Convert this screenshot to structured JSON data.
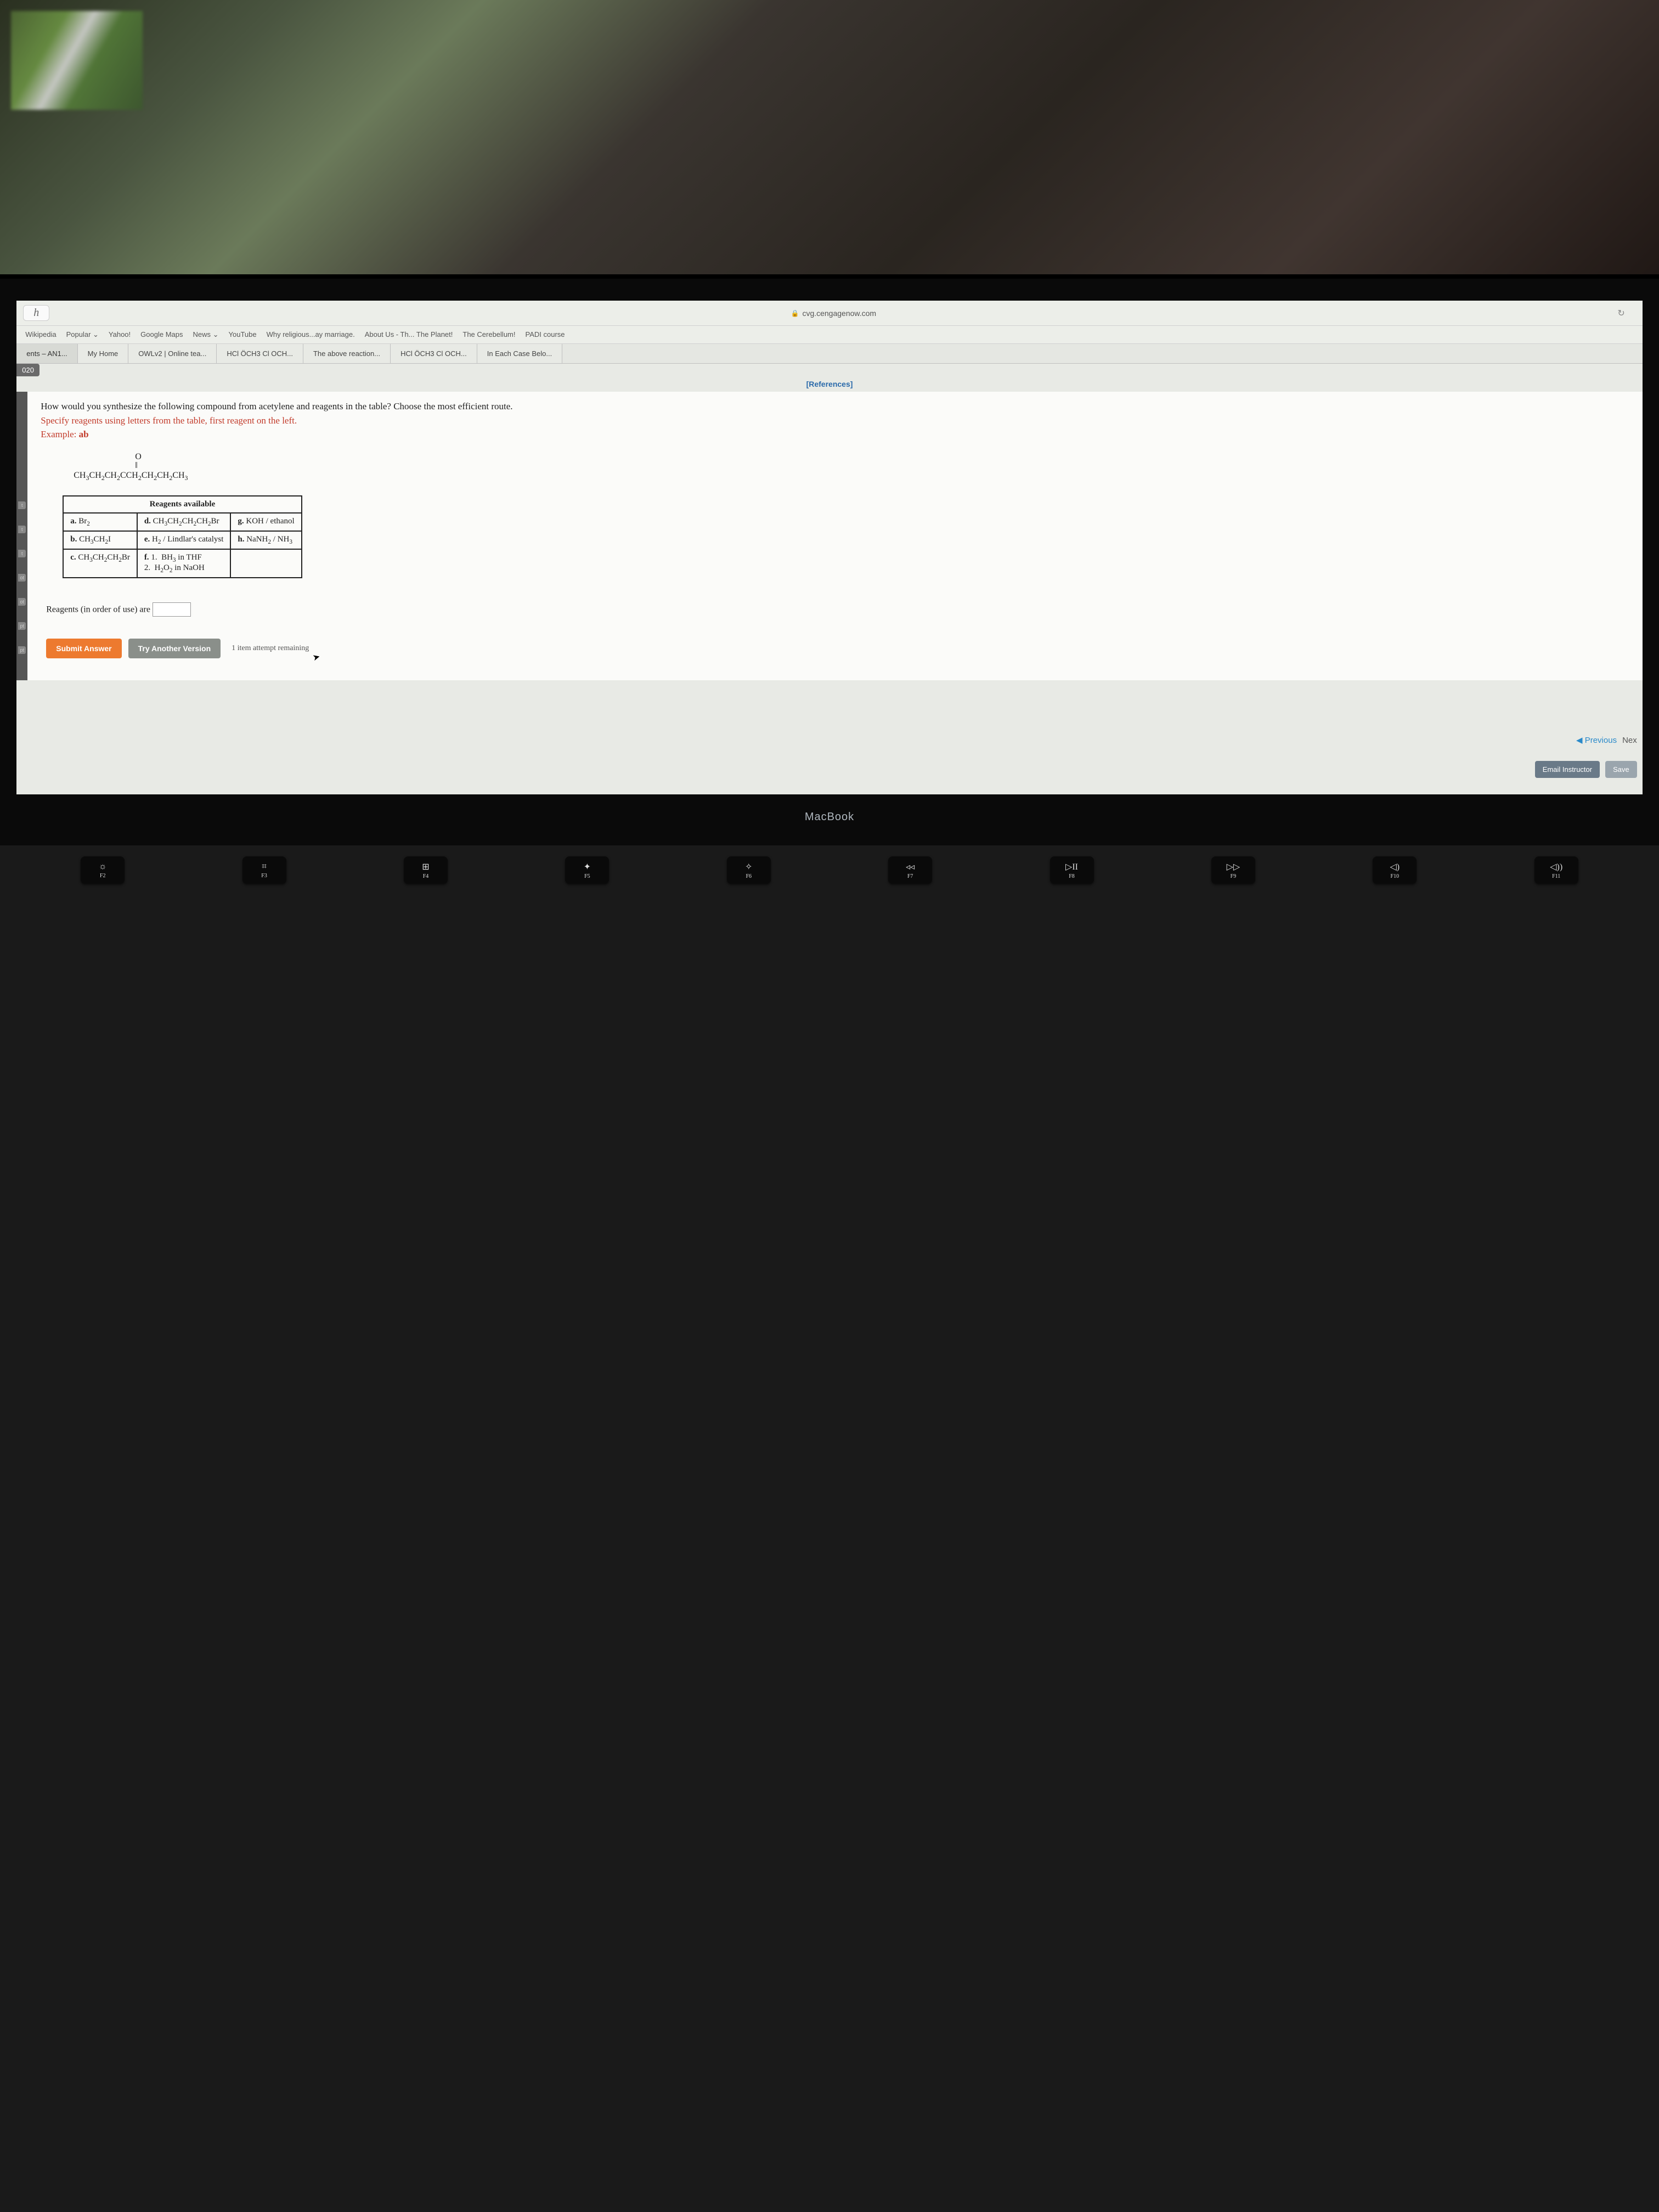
{
  "address_bar": {
    "h": "h",
    "url": "cvg.cengagenow.com",
    "reload": "↻"
  },
  "bookmarks": [
    "Wikipedia",
    "Popular ⌄",
    "Yahoo!",
    "Google Maps",
    "News ⌄",
    "YouTube",
    "Why religious...ay marriage.",
    "About Us - Th... The Planet!",
    "The Cerebellum!",
    "PADI course"
  ],
  "tabs": {
    "left": "ents – AN1...",
    "items": [
      "My Home",
      "OWLv2 | Online tea...",
      "HCl ÖCH3 Cl OCH...",
      "The above reaction...",
      "HCl ÖCH3 Cl OCH...",
      "In Each Case Belo..."
    ]
  },
  "year": "020",
  "references": "[References]",
  "question": {
    "line1": "How would you synthesize the following compound from acetylene and reagents in the table? Choose the most efficient route.",
    "line2": "Specify reagents using letters from the table, first reagent on the left.",
    "example_label": "Example: ",
    "example_val": "ab"
  },
  "molecule": {
    "top": "O",
    "dbl": "‖",
    "formula_html": "CH<sub>3</sub>CH<sub>2</sub>CH<sub>2</sub>CCH<sub>2</sub>CH<sub>2</sub>CH<sub>2</sub>CH<sub>3</sub>"
  },
  "reagents": {
    "header": "Reagents available",
    "a": {
      "l": "a.",
      "t_html": "Br<sub>2</sub>"
    },
    "b": {
      "l": "b.",
      "t_html": "CH<sub>3</sub>CH<sub>2</sub>I"
    },
    "c": {
      "l": "c.",
      "t_html": "CH<sub>3</sub>CH<sub>2</sub>CH<sub>2</sub>Br"
    },
    "d": {
      "l": "d.",
      "t_html": "CH<sub>3</sub>CH<sub>2</sub>CH<sub>2</sub>CH<sub>2</sub>Br"
    },
    "e": {
      "l": "e.",
      "t_html": "H<sub>2</sub> / Lindlar's catalyst"
    },
    "f": {
      "l": "f.",
      "t_html": "1.&nbsp;&nbsp;BH<sub>3</sub> in THF<br>2.&nbsp;&nbsp;H<sub>2</sub>O<sub>2</sub> in NaOH"
    },
    "g": {
      "l": "g.",
      "t_html": "KOH / ethanol"
    },
    "h": {
      "l": "h.",
      "t_html": "NaNH<sub>2</sub> / NH<sub>3</sub>"
    }
  },
  "answer_label": "Reagents (in order of use) are",
  "buttons": {
    "submit": "Submit Answer",
    "try": "Try Another Version",
    "attempts": "1 item attempt remaining"
  },
  "nav": {
    "previous": "Previous",
    "next": "Nex",
    "email": "Email Instructor",
    "save": "Save"
  },
  "macbook": "MacBook",
  "fnkeys": [
    {
      "icon": "☼",
      "label": "F2"
    },
    {
      "icon": "⌗",
      "label": "F3"
    },
    {
      "icon": "⊞",
      "label": "F4"
    },
    {
      "icon": "✦",
      "label": "F5"
    },
    {
      "icon": "✧",
      "label": "F6"
    },
    {
      "icon": "◃◃",
      "label": "F7"
    },
    {
      "icon": "▷II",
      "label": "F8"
    },
    {
      "icon": "▷▷",
      "label": "F9"
    },
    {
      "icon": "◁)",
      "label": "F10"
    },
    {
      "icon": "◁))",
      "label": "F11"
    }
  ],
  "side_labels": [
    "t",
    "t",
    "t",
    "ot",
    "ot",
    "pt",
    "pt"
  ]
}
